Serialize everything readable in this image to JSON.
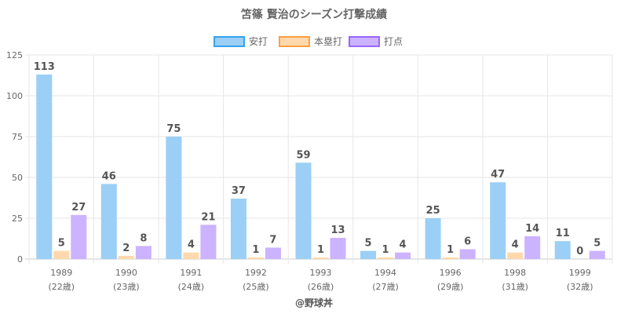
{
  "chart_data": {
    "type": "bar",
    "title": "笘篠 賢治のシーズン打撃成績",
    "categories": [
      "1989",
      "1990",
      "1991",
      "1992",
      "1993",
      "1994",
      "1996",
      "1998",
      "1999"
    ],
    "category_sublabels": [
      "(22歳)",
      "(23歳)",
      "(24歳)",
      "(25歳)",
      "(26歳)",
      "(27歳)",
      "(29歳)",
      "(31歳)",
      "(32歳)"
    ],
    "series": [
      {
        "name": "安打",
        "values": [
          113,
          46,
          75,
          37,
          59,
          5,
          25,
          47,
          11
        ],
        "fill": "#9ccff5",
        "stroke": "#36a2eb"
      },
      {
        "name": "本塁打",
        "values": [
          5,
          2,
          4,
          1,
          1,
          1,
          1,
          4,
          0
        ],
        "fill": "#ffd9ad",
        "stroke": "#ff9f40"
      },
      {
        "name": "打点",
        "values": [
          27,
          8,
          21,
          7,
          13,
          4,
          6,
          14,
          5
        ],
        "fill": "#ccb3ff",
        "stroke": "#9966ff"
      }
    ],
    "y_ticks": [
      0,
      25,
      50,
      75,
      100,
      125
    ],
    "ylim": [
      0,
      125
    ],
    "display_ylim": [
      0,
      125
    ],
    "grid": true,
    "legend_position": "top"
  },
  "footer": "@野球丼"
}
